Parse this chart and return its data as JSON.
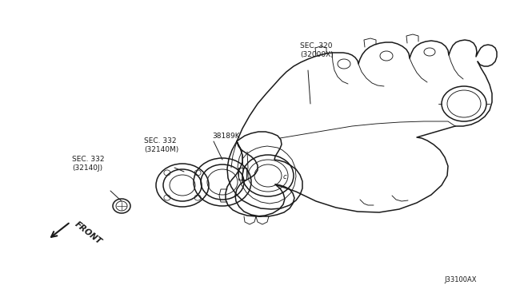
{
  "background_color": "#ffffff",
  "line_color": "#1a1a1a",
  "text_color": "#1a1a1a",
  "labels": {
    "sec320": "SEC. 320\n(32000X)",
    "part38189k": "38189K",
    "sec332m": "SEC. 332\n(32140M)",
    "sec332j": "SEC. 332\n(32140J)",
    "front": "FRONT",
    "part_number": "J33100AX"
  },
  "fontsize_label": 6.5,
  "fontsize_partnum": 6.0,
  "lw_main": 1.1,
  "lw_thin": 0.65,
  "lw_leader": 0.7
}
